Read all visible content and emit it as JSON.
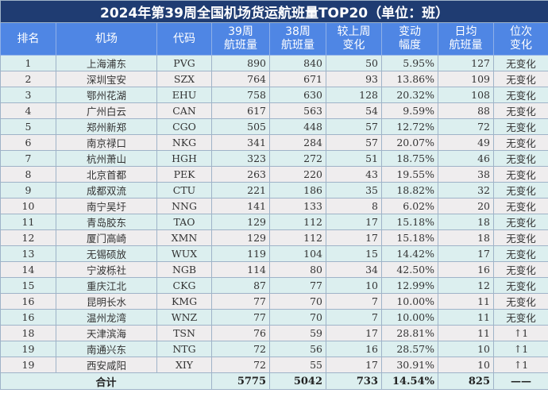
{
  "title": "2024年第39周全国机场货运航班量TOP20（单位：班）",
  "headers": [
    "排名",
    "机场",
    "代码",
    "39周\n航班量",
    "38周\n航班量",
    "较上周\n变化",
    "变动\n幅度",
    "日均\n航班量",
    "位次\n变化"
  ],
  "rows": [
    [
      "1",
      "上海浦东",
      "PVG",
      "890",
      "840",
      "50",
      "5.95%",
      "127",
      "无变化"
    ],
    [
      "2",
      "深圳宝安",
      "SZX",
      "764",
      "671",
      "93",
      "13.86%",
      "109",
      "无变化"
    ],
    [
      "3",
      "鄂州花湖",
      "EHU",
      "758",
      "630",
      "128",
      "20.32%",
      "108",
      "无变化"
    ],
    [
      "4",
      "广州白云",
      "CAN",
      "617",
      "563",
      "54",
      "9.59%",
      "88",
      "无变化"
    ],
    [
      "5",
      "郑州新郑",
      "CGO",
      "505",
      "448",
      "57",
      "12.72%",
      "72",
      "无变化"
    ],
    [
      "6",
      "南京禄口",
      "NKG",
      "341",
      "284",
      "57",
      "20.07%",
      "49",
      "无变化"
    ],
    [
      "7",
      "杭州萧山",
      "HGH",
      "323",
      "272",
      "51",
      "18.75%",
      "46",
      "无变化"
    ],
    [
      "8",
      "北京首都",
      "PEK",
      "263",
      "220",
      "43",
      "19.55%",
      "38",
      "无变化"
    ],
    [
      "9",
      "成都双流",
      "CTU",
      "221",
      "186",
      "35",
      "18.82%",
      "32",
      "无变化"
    ],
    [
      "10",
      "南宁吴圩",
      "NNG",
      "141",
      "133",
      "8",
      "6.02%",
      "20",
      "无变化"
    ],
    [
      "11",
      "青岛胶东",
      "TAO",
      "129",
      "112",
      "17",
      "15.18%",
      "18",
      "无变化"
    ],
    [
      "12",
      "厦门高崎",
      "XMN",
      "129",
      "112",
      "17",
      "15.18%",
      "18",
      "无变化"
    ],
    [
      "13",
      "无锡硕放",
      "WUX",
      "119",
      "104",
      "15",
      "14.42%",
      "17",
      "无变化"
    ],
    [
      "14",
      "宁波栎社",
      "NGB",
      "114",
      "80",
      "34",
      "42.50%",
      "16",
      "无变化"
    ],
    [
      "15",
      "重庆江北",
      "CKG",
      "87",
      "77",
      "10",
      "12.99%",
      "12",
      "无变化"
    ],
    [
      "16",
      "昆明长水",
      "KMG",
      "77",
      "70",
      "7",
      "10.00%",
      "11",
      "无变化"
    ],
    [
      "16",
      "温州龙湾",
      "WNZ",
      "77",
      "70",
      "7",
      "10.00%",
      "11",
      "无变化"
    ],
    [
      "18",
      "天津滨海",
      "TSN",
      "76",
      "59",
      "17",
      "28.81%",
      "11",
      "↑1"
    ],
    [
      "19",
      "南通兴东",
      "NTG",
      "72",
      "56",
      "16",
      "28.57%",
      "10",
      "↑1"
    ],
    [
      "19",
      "西安咸阳",
      "XIY",
      "72",
      "55",
      "17",
      "30.91%",
      "10",
      "↑1"
    ]
  ],
  "footer": {
    "label": "合计",
    "w39": "5775",
    "w38": "5042",
    "change": "733",
    "pct": "14.54%",
    "daily": "825",
    "rank_change": "——"
  }
}
